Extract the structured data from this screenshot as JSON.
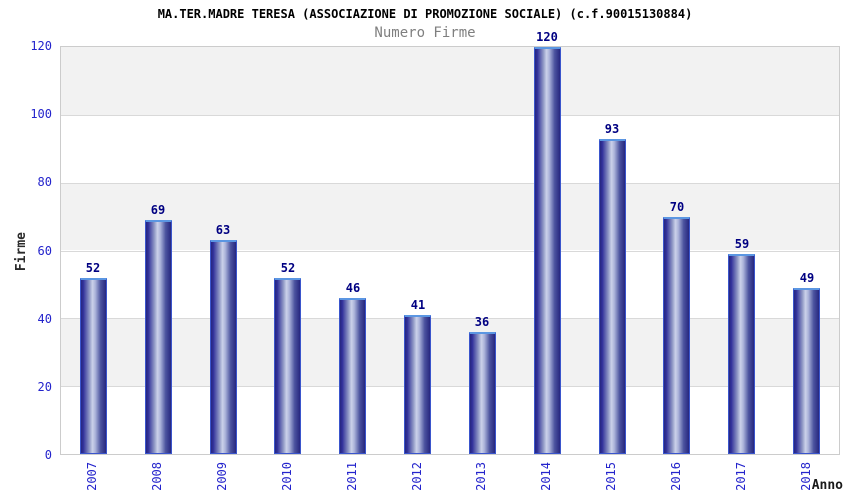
{
  "chart": {
    "title": "MA.TER.MADRE TERESA (ASSOCIAZIONE DI PROMOZIONE SOCIALE) (c.f.90015130884)",
    "subtitle": "Numero Firme",
    "ylabel": "Firme",
    "xlabel": "Anno"
  },
  "chart_data": {
    "type": "bar",
    "title": "MA.TER.MADRE TERESA (ASSOCIAZIONE DI PROMOZIONE SOCIALE) (c.f.90015130884)",
    "subtitle": "Numero Firme",
    "xlabel": "Anno",
    "ylabel": "Firme",
    "categories": [
      "2007",
      "2008",
      "2009",
      "2010",
      "2011",
      "2012",
      "2013",
      "2014",
      "2015",
      "2016",
      "2017",
      "2018"
    ],
    "values": [
      52,
      69,
      63,
      52,
      46,
      41,
      36,
      120,
      93,
      70,
      59,
      49
    ],
    "ylim": [
      0,
      120
    ],
    "yticks": [
      0,
      20,
      40,
      60,
      80,
      100,
      120
    ],
    "grid": "horizontal-bands-alternating",
    "legend": "none",
    "bar_value_labels": [
      "52",
      "69",
      "63",
      "52",
      "46",
      "41",
      "36",
      "120",
      "93",
      "70",
      "59",
      "49"
    ]
  },
  "colors": {
    "bar_edge_dark": "#27277f",
    "bar_mid": "#8d96c4",
    "bar_center_light": "#ccd2ea",
    "bar_border": "#3a55cc",
    "bar_cap": "#5b96e2",
    "tick_label_blue": "#2424cc",
    "value_label_navy": "#000082",
    "subtitle_gray": "#7f7f7f",
    "band_gray": "#f2f2f2",
    "band_white": "#ffffff",
    "gridline": "#d9d9d9",
    "plot_border": "#cccccc"
  }
}
